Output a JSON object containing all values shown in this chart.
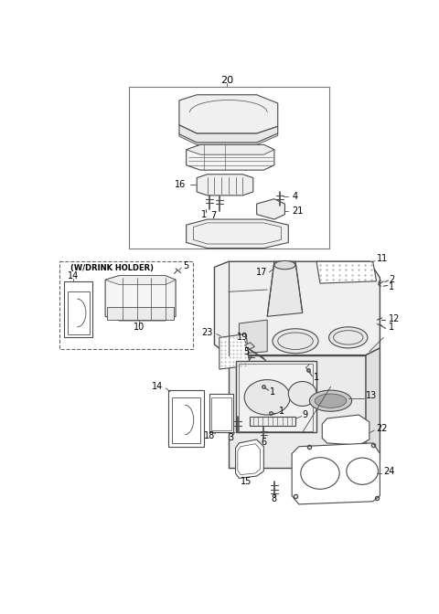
{
  "bg_color": "#ffffff",
  "line_color": "#4a4a4a",
  "label_color": "#000000",
  "fig_width": 4.8,
  "fig_height": 6.72,
  "dpi": 100
}
